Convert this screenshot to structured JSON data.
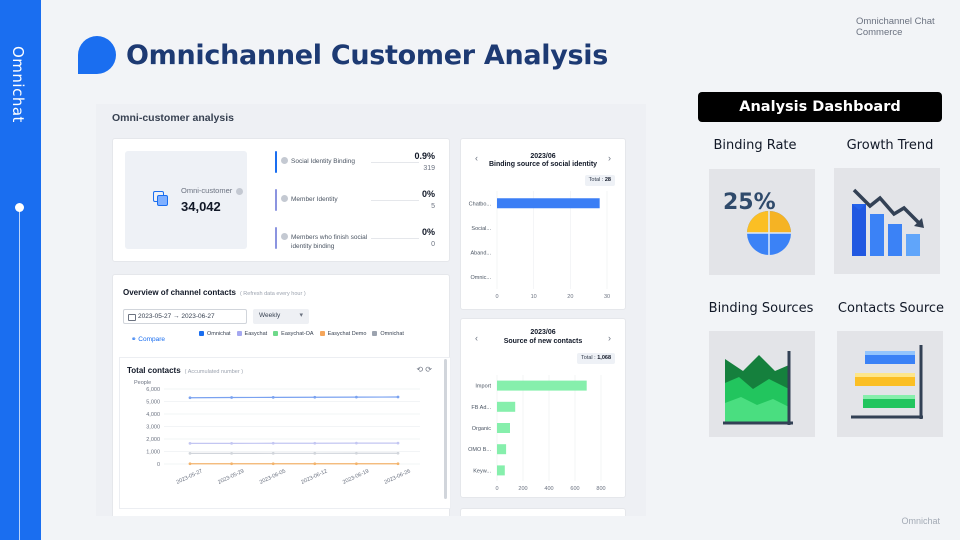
{
  "sidebar": {
    "brand": "Omnichat"
  },
  "header": {
    "title": "Omnichannel Customer Analysis",
    "corner_label": "Omnichannel Chat Commerce"
  },
  "footer": {
    "brand": "Omnichat"
  },
  "screenshot": {
    "title": "Omni-customer analysis",
    "omni": {
      "label": "Omni-customer",
      "value": "34,042"
    },
    "metrics": [
      {
        "label": "Social Identity Binding",
        "pct": "0.9%",
        "count": "319",
        "color": "#1a6ef0"
      },
      {
        "label": "Member Identity",
        "pct": "0%",
        "count": "5",
        "color": "#8b94e0"
      },
      {
        "label": "Members who finish social identity binding",
        "pct": "0%",
        "count": "0",
        "color": "#8b94e0"
      }
    ],
    "overview": {
      "title": "Overview of channel contacts",
      "subtitle": "( Refresh data every hour )",
      "date_range": "2023-05-27  →  2023-06-27",
      "period": "Weekly",
      "compare": "Compare",
      "legend": [
        {
          "name": "Omnichat",
          "color": "#1a6ef0"
        },
        {
          "name": "Easychat",
          "color": "#a5a8f0"
        },
        {
          "name": "Easychat-OA",
          "color": "#6fd98a"
        },
        {
          "name": "Easychat Demo",
          "color": "#f5a65b"
        },
        {
          "name": "Omnichat",
          "color": "#9ca3af"
        }
      ]
    },
    "total_contacts_chart": {
      "type": "line",
      "title": "Total contacts",
      "subtitle": "( Accumulated number )",
      "ylabel": "People",
      "x": [
        "2023-05-27",
        "2023-05-29",
        "2023-06-05",
        "2023-06-12",
        "2023-06-19",
        "2023-06-26"
      ],
      "yticks": [
        "6,000",
        "5,000",
        "4,000",
        "3,000",
        "2,000",
        "1,000",
        "0"
      ],
      "ylim": [
        0,
        6000
      ],
      "series": [
        {
          "color": "#7aa2f0",
          "values": [
            5300,
            5320,
            5330,
            5340,
            5350,
            5360
          ]
        },
        {
          "color": "#c3c6f2",
          "values": [
            1650,
            1650,
            1660,
            1660,
            1670,
            1670
          ]
        },
        {
          "color": "#d1d5db",
          "values": [
            850,
            850,
            855,
            855,
            860,
            860
          ]
        },
        {
          "color": "#f3b36b",
          "values": [
            20,
            20,
            20,
            20,
            20,
            20
          ]
        }
      ]
    },
    "binding_chart": {
      "type": "bar",
      "period": "2023/06",
      "title": "Binding source of social identity",
      "total_label": "Total :",
      "total_value": "28",
      "categories": [
        "Chatbo...",
        "Social...",
        "Aband...",
        "Omnic..."
      ],
      "values": [
        28,
        0,
        0,
        0
      ],
      "xticks": [
        "0",
        "10",
        "20",
        "30"
      ],
      "xlim": [
        0,
        30
      ],
      "color": "#3b7ef5"
    },
    "new_contacts_chart": {
      "type": "bar",
      "period": "2023/06",
      "title": "Source of new contacts",
      "total_label": "Total :",
      "total_value": "1,068",
      "categories": [
        "Import",
        "FB Ad...",
        "Organic",
        "OMO B...",
        "Keyw..."
      ],
      "values": [
        690,
        140,
        100,
        70,
        60
      ],
      "xticks": [
        "0",
        "200",
        "400",
        "600",
        "800"
      ],
      "xlim": [
        0,
        800
      ],
      "color": "#86efac"
    }
  },
  "dashboard": {
    "header": "Analysis Dashboard",
    "tiles": [
      {
        "label": "Binding Rate",
        "icon": "pie-chart-percent-icon",
        "percent_text": "25%"
      },
      {
        "label": "Growth Trend",
        "icon": "bar-trend-icon"
      },
      {
        "label": "Binding Sources",
        "icon": "area-chart-icon"
      },
      {
        "label": "Contacts Source",
        "icon": "horizontal-bar-icon"
      }
    ]
  }
}
